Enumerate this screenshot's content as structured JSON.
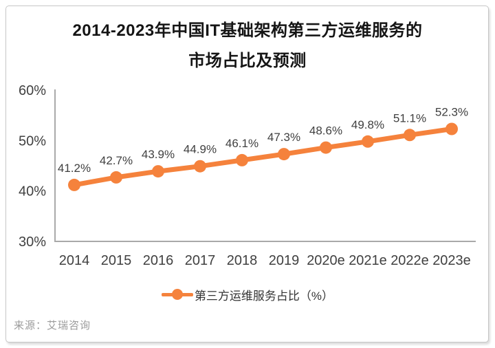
{
  "card": {
    "title_line1": "2014-2023年中国IT基础架构第三方运维服务的",
    "title_line2": "市场占比及预测",
    "source": "来源：艾瑞咨询"
  },
  "legend": {
    "label": "第三方运维服务占比（%）"
  },
  "chart_data": {
    "type": "line",
    "title": "2014-2023年中国IT基础架构第三方运维服务的市场占比及预测",
    "categories": [
      "2014",
      "2015",
      "2016",
      "2017",
      "2018",
      "2019",
      "2020e",
      "2021e",
      "2022e",
      "2023e"
    ],
    "series": [
      {
        "name": "第三方运维服务占比（%）",
        "values": [
          41.2,
          42.7,
          43.9,
          44.9,
          46.1,
          47.3,
          48.6,
          49.8,
          51.1,
          52.3
        ]
      }
    ],
    "data_labels": [
      "41.2%",
      "42.7%",
      "43.9%",
      "44.9%",
      "46.1%",
      "47.3%",
      "48.6%",
      "49.8%",
      "51.1%",
      "52.3%"
    ],
    "xlabel": "",
    "ylabel": "",
    "ylim": [
      30,
      60
    ],
    "yticks": [
      30,
      40,
      50,
      60
    ],
    "ytick_labels": [
      "30%",
      "40%",
      "50%",
      "60%"
    ],
    "grid": false,
    "legend_position": "bottom",
    "line_color": "#f5823c",
    "axis_color": "#a9a9a9",
    "marker": "circle"
  }
}
